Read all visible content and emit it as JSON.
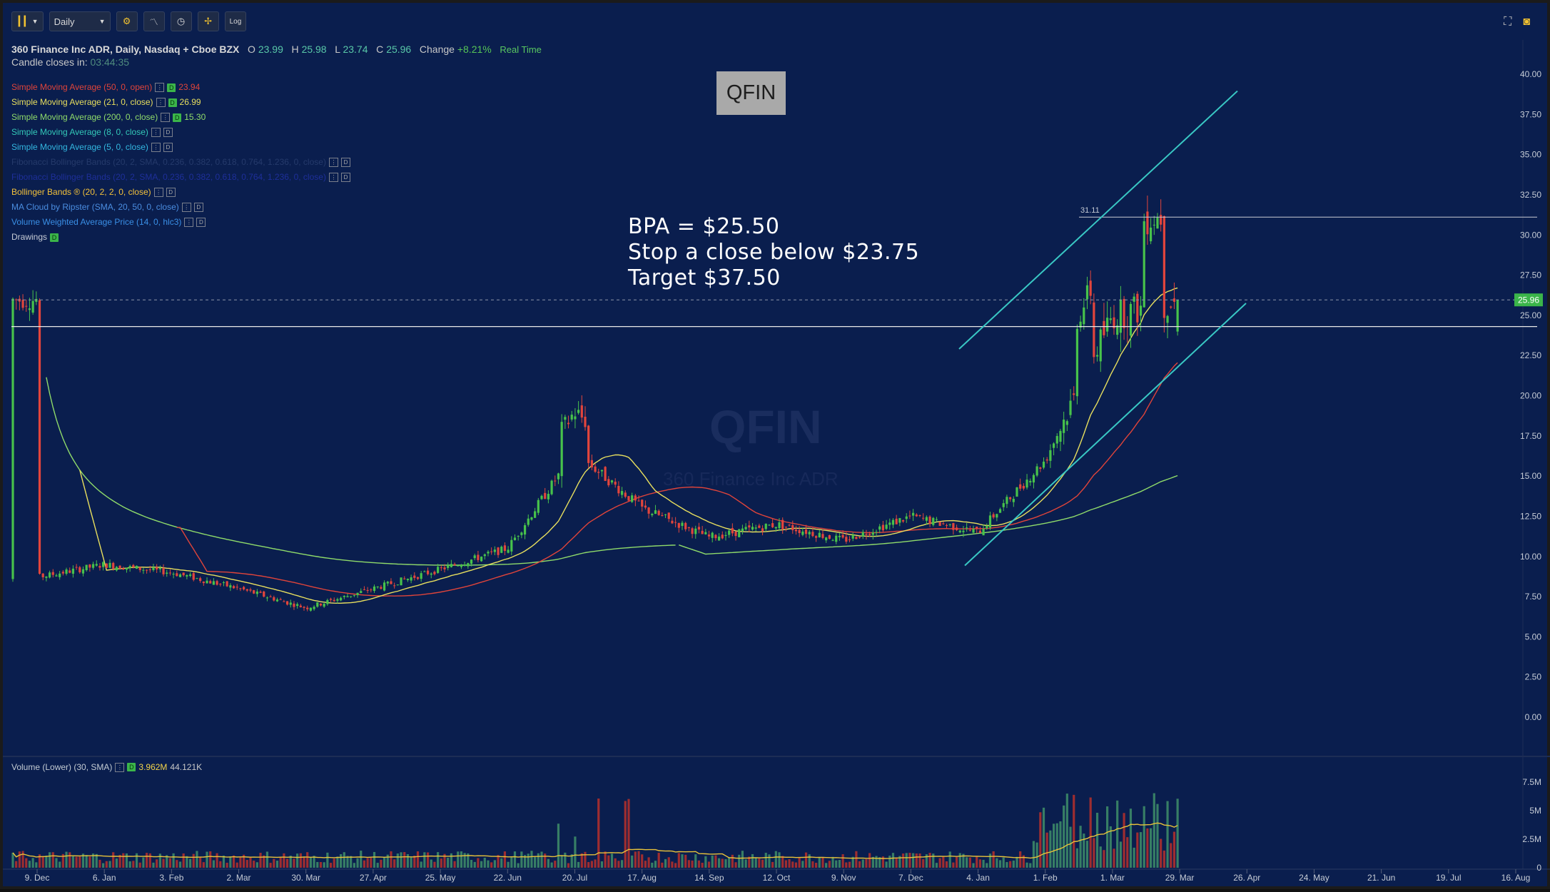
{
  "toolbar": {
    "interval": "Daily",
    "log_label": "Log",
    "icons": [
      "candle-style-icon",
      "dropdown-arrow-icon",
      "gear-icon",
      "studies-icon",
      "clock-icon",
      "drawing-tool-icon",
      "log-scale-icon",
      "fullscreen-icon",
      "camera-icon"
    ]
  },
  "header": {
    "title": "360 Finance Inc ADR, Daily, Nasdaq + Cboe BZX",
    "o_label": "O",
    "o": "23.99",
    "h_label": "H",
    "h": "25.98",
    "l_label": "L",
    "l": "23.74",
    "c_label": "C",
    "c": "25.96",
    "change_label": "Change",
    "change": "+8.21%",
    "realtime": "Real Time",
    "candle_label": "Candle closes in:",
    "candle_time": "03:44:35"
  },
  "studies": [
    {
      "label": "Simple Moving Average (50, 0, open)",
      "value": "23.94",
      "color": "#e0443a"
    },
    {
      "label": "Simple Moving Average (21, 0, close)",
      "value": "26.99",
      "color": "#e8df5e"
    },
    {
      "label": "Simple Moving Average (200, 0, close)",
      "value": "15.30",
      "color": "#8fdb6a"
    },
    {
      "label": "Simple Moving Average (8, 0, close)",
      "value": "",
      "color": "#33c8b8"
    },
    {
      "label": "Simple Moving Average (5, 0, close)",
      "value": "",
      "color": "#33b7e0"
    },
    {
      "label": "Fibonacci Bollinger Bands (20, 2, SMA, 0.236, 0.382, 0.618, 0.764, 1.236, 0, close)",
      "value": "",
      "color": "#253a6b"
    },
    {
      "label": "Fibonacci Bollinger Bands (20, 2, SMA, 0.236, 0.382, 0.618, 0.764, 1.236, 0, close)",
      "value": "",
      "color": "#1e2f9a"
    },
    {
      "label": "Bollinger Bands ® (20, 2, 2, 0, close)",
      "value": "",
      "color": "#f3c13a"
    },
    {
      "label": "MA Cloud by Ripster (SMA, 20, 50, 0, close)",
      "value": "",
      "color": "#4a8de0"
    },
    {
      "label": "Volume Weighted Average Price (14, 0, hlc3)",
      "value": "",
      "color": "#3a8fe6"
    },
    {
      "label": "Drawings",
      "value": "",
      "color": "#c6ccd6"
    }
  ],
  "annotations": {
    "ticker_box": "QFIN",
    "watermark": "QFIN",
    "watermark_sub": "360 Finance Inc ADR",
    "note": [
      "BPA = $25.50",
      "Stop a close below $23.75",
      "Target $37.50"
    ],
    "level_label": "31.11",
    "price_tag": "25.96"
  },
  "volume_legend": {
    "label": "Volume (Lower) (30, SMA)",
    "v1": "3.962M",
    "v2": "44.121K"
  },
  "chart_data": [
    {
      "type": "candlestick",
      "title": "360 Finance Inc ADR, Daily, Nasdaq + Cboe BZX",
      "y_ticks": [
        "40.00",
        "37.50",
        "35.00",
        "32.50",
        "30.00",
        "27.50",
        "25.00",
        "22.50",
        "20.00",
        "17.50",
        "15.00",
        "12.50",
        "10.00",
        "7.50",
        "5.00",
        "2.50",
        "0.00"
      ],
      "ylim": [
        0,
        40
      ],
      "x_ticks": [
        "9. Dec",
        "6. Jan",
        "3. Feb",
        "2. Mar",
        "30. Mar",
        "27. Apr",
        "25. May",
        "22. Jun",
        "20. Jul",
        "17. Aug",
        "14. Sep",
        "12. Oct",
        "9. Nov",
        "7. Dec",
        "4. Jan",
        "1. Feb",
        "1. Mar",
        "29. Mar",
        "26. Apr",
        "24. May",
        "21. Jun",
        "19. Jul",
        "16. Aug"
      ],
      "price_path_approx": [
        {
          "x": "9. Dec",
          "y": 8.7
        },
        {
          "x": "6. Jan",
          "y": 9.5
        },
        {
          "x": "3. Feb",
          "y": 9.0
        },
        {
          "x": "2. Mar",
          "y": 8.0
        },
        {
          "x": "30. Mar",
          "y": 6.8
        },
        {
          "x": "27. Apr",
          "y": 8.0
        },
        {
          "x": "25. May",
          "y": 9.2
        },
        {
          "x": "22. Jun",
          "y": 10.5
        },
        {
          "x": "20. Jul",
          "y": 16.5
        },
        {
          "x": "17. Aug",
          "y": 13.0
        },
        {
          "x": "14. Sep",
          "y": 11.2
        },
        {
          "x": "12. Oct",
          "y": 12.0
        },
        {
          "x": "9. Nov",
          "y": 11.0
        },
        {
          "x": "7. Dec",
          "y": 12.5
        },
        {
          "x": "4. Jan",
          "y": 11.5
        },
        {
          "x": "1. Feb",
          "y": 16.0
        },
        {
          "x": "1. Mar",
          "y": 25.0
        },
        {
          "x": "29. Mar",
          "y": 25.96
        }
      ],
      "key_levels": {
        "level_31_11": 31.11,
        "last_price": 25.96,
        "horizontal_support": 24.3
      },
      "series": [
        {
          "name": "Simple Moving Average (50, 0, open)",
          "last": 23.94
        },
        {
          "name": "Simple Moving Average (21, 0, close)",
          "last": 26.99
        },
        {
          "name": "Simple Moving Average (200, 0, close)",
          "last": 15.3
        }
      ],
      "channel_lines": [
        {
          "from": {
            "x": "4. Jan",
            "y": 24.0
          },
          "to": {
            "x": "26. Apr",
            "y": 39.5
          }
        },
        {
          "from": {
            "x": "4. Jan",
            "y": 10.2
          },
          "to": {
            "x": "26. Apr",
            "y": 25.8
          }
        }
      ]
    },
    {
      "type": "bar",
      "title": "Volume (Lower) (30, SMA)",
      "y_ticks": [
        "7.5M",
        "5M",
        "2.5M",
        "0"
      ],
      "ylim": [
        0,
        7500000
      ],
      "last": "3.962M"
    }
  ]
}
